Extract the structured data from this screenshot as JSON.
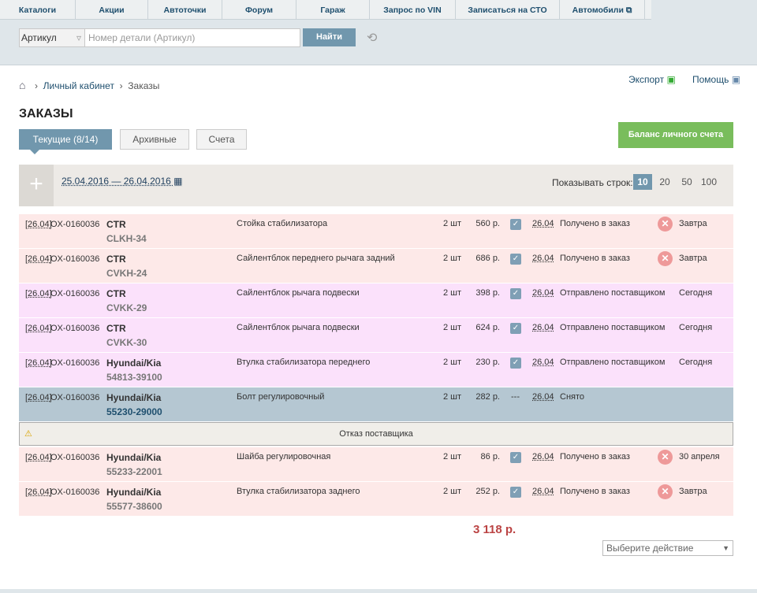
{
  "nav": [
    "Каталоги",
    "Акции",
    "Автоточки",
    "Форум",
    "Гараж",
    "Запрос по VIN",
    "Записаться на СТО",
    "Автомобили"
  ],
  "search": {
    "select": "Артикул",
    "placeholder": "Номер детали (Артикул)",
    "button": "Найти"
  },
  "breadcrumbs": [
    "Личный кабинет",
    "Заказы"
  ],
  "links": [
    "Экспорт",
    "Помощь"
  ],
  "title": "ЗАКАЗЫ",
  "tabs": [
    "Текущие (8/14)",
    "Архивные",
    "Счета"
  ],
  "balance_button": "Баланс личного счета",
  "filter": {
    "date_range": "25.04.2016 — 26.04.2016",
    "rows_label": "Показывать строк:",
    "rows_options": [
      10,
      20,
      50,
      100
    ]
  },
  "orders": [
    {
      "date": "[26.04]",
      "number": "OX-0160036",
      "brand": "CTR",
      "article": "CLKH-34",
      "name": "Стойка стабилизатора",
      "qty": "2 шт",
      "price": "560 р.",
      "check": true,
      "status_date": "26.04",
      "status": "Получено в заказ",
      "cancel": true,
      "delivery": "Завтра",
      "color": "#fde9e8"
    },
    {
      "date": "[26.04]",
      "number": "OX-0160036",
      "brand": "CTR",
      "article": "CVKH-24",
      "name": "Сайлентблок переднего рычага задний",
      "qty": "2 шт",
      "price": "686 р.",
      "check": true,
      "status_date": "26.04",
      "status": "Получено в заказ",
      "cancel": true,
      "delivery": "Завтра",
      "color": "#fde9e8"
    },
    {
      "date": "[26.04]",
      "number": "OX-0160036",
      "brand": "CTR",
      "article": "CVKK-29",
      "name": "Сайлентблок рычага подвески",
      "qty": "2 шт",
      "price": "398 р.",
      "check": true,
      "status_date": "26.04",
      "status": "Отправлено поставщиком",
      "cancel": false,
      "delivery": "Сегодня",
      "color": "#fbe1fb"
    },
    {
      "date": "[26.04]",
      "number": "OX-0160036",
      "brand": "CTR",
      "article": "CVKK-30",
      "name": "Сайлентблок рычага подвески",
      "qty": "2 шт",
      "price": "624 р.",
      "check": true,
      "status_date": "26.04",
      "status": "Отправлено поставщиком",
      "cancel": false,
      "delivery": "Сегодня",
      "color": "#fbe1fb"
    },
    {
      "date": "[26.04]",
      "number": "OX-0160036",
      "brand": "Hyundai/Kia",
      "article": "54813-39100",
      "name": "Втулка стабилизатора переднего",
      "qty": "2 шт",
      "price": "230 р.",
      "check": true,
      "status_date": "26.04",
      "status": "Отправлено поставщиком",
      "cancel": false,
      "delivery": "Сегодня",
      "color": "#fbe1fb"
    },
    {
      "date": "[26.04]",
      "number": "OX-0160036",
      "brand": "Hyundai/Kia",
      "article": "55230-29000",
      "name": "Болт регулировочный",
      "qty": "2 шт",
      "price": "282 р.",
      "check": "---",
      "status_date": "26.04",
      "status": "Снято",
      "cancel": false,
      "delivery": "",
      "color": "#b5c7d2"
    },
    {
      "date": "[26.04]",
      "number": "OX-0160036",
      "brand": "Hyundai/Kia",
      "article": "55233-22001",
      "name": "Шайба регулировочная",
      "qty": "2 шт",
      "price": "86 р.",
      "check": true,
      "status_date": "26.04",
      "status": "Получено в заказ",
      "cancel": true,
      "delivery": "30 апреля",
      "color": "#fde9e8"
    },
    {
      "date": "[26.04]",
      "number": "OX-0160036",
      "brand": "Hyundai/Kia",
      "article": "55577-38600",
      "name": "Втулка стабилизатора заднего",
      "qty": "2 шт",
      "price": "252 р.",
      "check": true,
      "status_date": "26.04",
      "status": "Получено в заказ",
      "cancel": true,
      "delivery": "Завтра",
      "color": "#fde9e8"
    }
  ],
  "notice": "Отказ поставщика",
  "total": "3 118 р.",
  "action_select": "Выберите действие"
}
